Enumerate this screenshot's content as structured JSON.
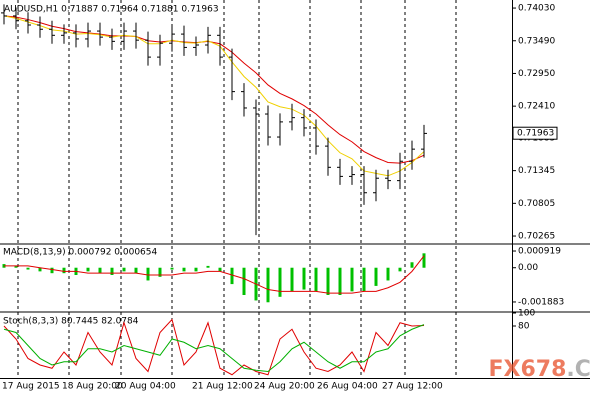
{
  "chart_data": [
    {
      "type": "ohlc",
      "title": "AUDUSD,H1  0.71887 0.71964 0.71881 0.71963",
      "open": [
        0.7395,
        0.739,
        0.7382,
        0.7375,
        0.7368,
        0.7358,
        0.7362,
        0.7352,
        0.7365,
        0.7355,
        0.7348,
        0.7365,
        0.735,
        0.7322,
        0.7345,
        0.736,
        0.7338,
        0.7342,
        0.7358,
        0.7322,
        0.7265,
        0.7238,
        0.7228,
        0.719,
        0.7215,
        0.7222,
        0.7205,
        0.7175,
        0.714,
        0.7125,
        0.7128,
        0.7098,
        0.7122,
        0.7118,
        0.715,
        0.717
      ],
      "high": [
        0.7409,
        0.7404,
        0.7396,
        0.7389,
        0.7382,
        0.7376,
        0.7376,
        0.7379,
        0.7379,
        0.7369,
        0.7379,
        0.7379,
        0.7364,
        0.7359,
        0.7374,
        0.7374,
        0.7356,
        0.7372,
        0.7372,
        0.7336,
        0.7279,
        0.7252,
        0.7242,
        0.7229,
        0.7245,
        0.7236,
        0.7219,
        0.7189,
        0.7154,
        0.7142,
        0.7142,
        0.7136,
        0.7136,
        0.7164,
        0.7184,
        0.721
      ],
      "low": [
        0.7376,
        0.7368,
        0.7361,
        0.7354,
        0.7344,
        0.7344,
        0.7338,
        0.7338,
        0.7341,
        0.7334,
        0.7334,
        0.7336,
        0.7308,
        0.7308,
        0.7331,
        0.7324,
        0.7324,
        0.7328,
        0.7308,
        0.7251,
        0.7224,
        0.7028,
        0.7176,
        0.7176,
        0.7201,
        0.7191,
        0.7161,
        0.7126,
        0.7111,
        0.7111,
        0.7078,
        0.7084,
        0.7104,
        0.7104,
        0.7136,
        0.7156
      ],
      "close": [
        0.739,
        0.7382,
        0.7375,
        0.7368,
        0.7358,
        0.7362,
        0.7352,
        0.7365,
        0.7355,
        0.7348,
        0.7365,
        0.735,
        0.7322,
        0.7345,
        0.736,
        0.7338,
        0.7342,
        0.7358,
        0.7322,
        0.7265,
        0.7238,
        0.7228,
        0.719,
        0.7215,
        0.7222,
        0.7205,
        0.7175,
        0.714,
        0.7125,
        0.7128,
        0.7098,
        0.7122,
        0.7118,
        0.715,
        0.717,
        0.7196
      ],
      "color": "#000000",
      "ma_lines": [
        {
          "color": "#e00000",
          "values": [
            0.739,
            0.7388,
            0.7384,
            0.7379,
            0.7373,
            0.7369,
            0.7364,
            0.7362,
            0.736,
            0.7357,
            0.7357,
            0.7356,
            0.7349,
            0.7347,
            0.7349,
            0.7347,
            0.7346,
            0.7348,
            0.7344,
            0.733,
            0.7312,
            0.7296,
            0.7276,
            0.7262,
            0.7253,
            0.7242,
            0.7228,
            0.721,
            0.7194,
            0.7182,
            0.7166,
            0.7156,
            0.7148,
            0.7147,
            0.7151,
            0.716
          ]
        },
        {
          "color": "#f0d000",
          "values": [
            0.739,
            0.7386,
            0.738,
            0.7374,
            0.7367,
            0.7365,
            0.736,
            0.7361,
            0.7359,
            0.7355,
            0.7358,
            0.7356,
            0.7344,
            0.7344,
            0.735,
            0.7346,
            0.7345,
            0.7349,
            0.734,
            0.7314,
            0.729,
            0.7272,
            0.7248,
            0.724,
            0.7236,
            0.7226,
            0.7208,
            0.7184,
            0.7164,
            0.7154,
            0.7134,
            0.713,
            0.7126,
            0.7134,
            0.7148,
            0.7166
          ]
        }
      ],
      "ylim": [
        0.7015,
        0.7413
      ],
      "yticks": [
        {
          "value": 0.7403,
          "label": "0.74030"
        },
        {
          "value": 0.7349,
          "label": "0.73490"
        },
        {
          "value": 0.7295,
          "label": "0.72950"
        },
        {
          "value": 0.7241,
          "label": "0.72410"
        },
        0.71883,
        0.71345,
        {
          "value": 0.70805,
          "label": "0.70805"
        },
        0.70265
      ],
      "last_price": 0.71963,
      "x_labels": [
        "17 Aug 2015",
        "18 Aug 20:00",
        "20 Aug 04:00",
        "21 Aug 12:00",
        "24 Aug 20:00",
        "26 Aug 04:00",
        "27 Aug 12:00"
      ]
    },
    {
      "type": "macd",
      "title": "MACD(8,13,9) 0.000792 0.000654",
      "color": "#00c000",
      "values": [
        0.0002,
        0.0001,
        -0.0001,
        -0.0002,
        -0.0003,
        -0.0003,
        -0.0004,
        -0.0002,
        -0.0003,
        -0.0004,
        -0.0002,
        -0.0003,
        -0.0007,
        -0.0005,
        -0.0001,
        -0.0002,
        -0.0002,
        0.0001,
        -0.0002,
        -0.0009,
        -0.0015,
        -0.0018,
        -0.0019,
        -0.0016,
        -0.0013,
        -0.0012,
        -0.0013,
        -0.0015,
        -0.0015,
        -0.0013,
        -0.0013,
        -0.001,
        -0.0007,
        -0.0002,
        0.0003,
        0.000792
      ],
      "signal": {
        "color": "#e00000",
        "values": [
          0.0001,
          0.0001,
          0.0001,
          0,
          -0.0001,
          -0.0002,
          -0.0002,
          -0.0003,
          -0.0003,
          -0.0003,
          -0.0003,
          -0.0003,
          -0.0004,
          -0.0004,
          -0.0004,
          -0.0003,
          -0.0003,
          -0.0002,
          -0.0002,
          -0.0004,
          -0.0006,
          -0.0009,
          -0.0012,
          -0.0013,
          -0.0013,
          -0.0013,
          -0.0013,
          -0.0014,
          -0.0014,
          -0.0014,
          -0.0013,
          -0.0013,
          -0.0011,
          -0.0008,
          -0.0002,
          0.000654
        ]
      },
      "ylim": [
        -0.00238,
        0.00125
      ],
      "yticks": [
        0.000919,
        {
          "value": 0,
          "label": "0.00"
        },
        -0.001883
      ]
    },
    {
      "type": "line",
      "title": "Stoch(8,3,3) 80.7445 82.0784",
      "series": [
        {
          "color": "#e00000",
          "values": [
            80,
            60,
            30,
            20,
            15,
            40,
            20,
            70,
            40,
            20,
            85,
            30,
            10,
            70,
            90,
            20,
            40,
            85,
            15,
            5,
            20,
            10,
            5,
            60,
            75,
            40,
            15,
            10,
            20,
            40,
            10,
            70,
            50,
            85,
            80,
            80.7445
          ]
        },
        {
          "color": "#00b000",
          "values": [
            75,
            70,
            50,
            30,
            20,
            25,
            25,
            45,
            45,
            40,
            50,
            45,
            40,
            35,
            60,
            55,
            45,
            50,
            45,
            30,
            15,
            12,
            10,
            25,
            45,
            55,
            40,
            25,
            15,
            25,
            25,
            40,
            45,
            65,
            75,
            82.0784
          ]
        }
      ],
      "ylim": [
        0,
        100
      ],
      "yticks": [
        100,
        80
      ]
    }
  ],
  "watermark": [
    "FX678",
    ".COM"
  ]
}
